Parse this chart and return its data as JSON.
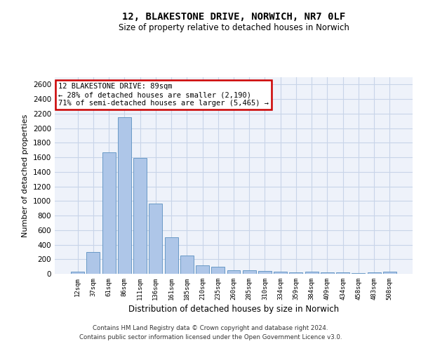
{
  "title1": "12, BLAKESTONE DRIVE, NORWICH, NR7 0LF",
  "title2": "Size of property relative to detached houses in Norwich",
  "xlabel": "Distribution of detached houses by size in Norwich",
  "ylabel": "Number of detached properties",
  "categories": [
    "12sqm",
    "37sqm",
    "61sqm",
    "86sqm",
    "111sqm",
    "136sqm",
    "161sqm",
    "185sqm",
    "210sqm",
    "235sqm",
    "260sqm",
    "285sqm",
    "310sqm",
    "334sqm",
    "359sqm",
    "384sqm",
    "409sqm",
    "434sqm",
    "458sqm",
    "483sqm",
    "508sqm"
  ],
  "values": [
    25,
    300,
    1670,
    2150,
    1590,
    960,
    500,
    250,
    120,
    100,
    50,
    50,
    35,
    30,
    20,
    30,
    20,
    20,
    5,
    20,
    25
  ],
  "bar_color": "#aec6e8",
  "bar_edge_color": "#5a8fc0",
  "ylim": [
    0,
    2700
  ],
  "yticks": [
    0,
    200,
    400,
    600,
    800,
    1000,
    1200,
    1400,
    1600,
    1800,
    2000,
    2200,
    2400,
    2600
  ],
  "annotation_box_text": "12 BLAKESTONE DRIVE: 89sqm\n← 28% of detached houses are smaller (2,190)\n71% of semi-detached houses are larger (5,465) →",
  "annotation_box_color": "#cc0000",
  "footer1": "Contains HM Land Registry data © Crown copyright and database right 2024.",
  "footer2": "Contains public sector information licensed under the Open Government Licence v3.0.",
  "grid_color": "#c8d4e8",
  "background_color": "#eef2fa"
}
